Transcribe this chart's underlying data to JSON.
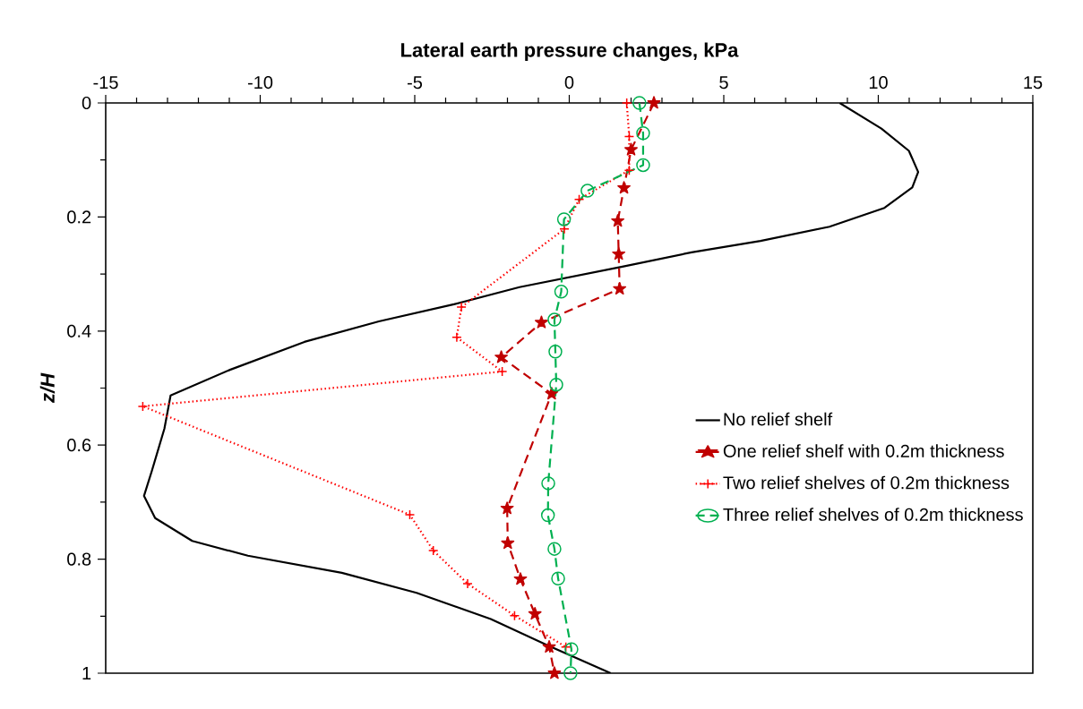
{
  "chart_data": {
    "type": "line",
    "xlabel": "Lateral earth pressure changes, kPa",
    "ylabel": "z/H",
    "xlim": [
      -15,
      15
    ],
    "xticks": [
      -15,
      {
        "value": -14,
        "label": null
      },
      {
        "value": -13,
        "label": null
      },
      {
        "value": -12,
        "label": null
      },
      {
        "value": -11,
        "label": null
      },
      -10,
      {
        "value": -9,
        "label": null
      },
      {
        "value": -8,
        "label": null
      },
      {
        "value": -7,
        "label": null
      },
      {
        "value": -6,
        "label": null
      },
      -5,
      {
        "value": -4,
        "label": null
      },
      {
        "value": -3,
        "label": null
      },
      {
        "value": -2,
        "label": null
      },
      {
        "value": -1,
        "label": null
      },
      0,
      {
        "value": 1,
        "label": null
      },
      {
        "value": 2,
        "label": null
      },
      {
        "value": 3,
        "label": null
      },
      {
        "value": 4,
        "label": null
      },
      5,
      {
        "value": 6,
        "label": null
      },
      {
        "value": 7,
        "label": null
      },
      {
        "value": 8,
        "label": null
      },
      {
        "value": 9,
        "label": null
      },
      10,
      {
        "value": 11,
        "label": null
      },
      {
        "value": 12,
        "label": null
      },
      {
        "value": 13,
        "label": null
      },
      {
        "value": 14,
        "label": null
      },
      15
    ],
    "ylim": [
      1,
      0
    ],
    "yticks": [
      0,
      {
        "value": 0.1,
        "label": null
      },
      0.2,
      {
        "value": 0.3,
        "label": null
      },
      0.4,
      {
        "value": 0.5,
        "label": null
      },
      0.6,
      {
        "value": 0.7,
        "label": null
      },
      0.8,
      {
        "value": 0.9,
        "label": null
      },
      1
    ],
    "grid": false,
    "legend": "right",
    "series": [
      {
        "name": "No relief shelf",
        "color": "#000000",
        "marker": "none",
        "line_style": "solid",
        "x": [
          8.75,
          10.1,
          10.99,
          11.29,
          11.1,
          10.2,
          8.42,
          6.19,
          3.96,
          1.72,
          -1.61,
          -3.73,
          -6.16,
          -8.57,
          -10.98,
          -12.9,
          -13.1,
          -13.5,
          -13.76,
          -13.4,
          -12.2,
          -10.4,
          -7.36,
          -4.94,
          -2.54,
          -0.71,
          1.34
        ],
        "values": [
          0,
          0.045,
          0.084,
          0.121,
          0.148,
          0.184,
          0.217,
          0.242,
          0.262,
          0.287,
          0.323,
          0.353,
          0.383,
          0.419,
          0.468,
          0.513,
          0.571,
          0.644,
          0.689,
          0.728,
          0.768,
          0.794,
          0.824,
          0.859,
          0.905,
          0.951,
          1
        ]
      },
      {
        "name": "One relief shelf with 0.2m thickness",
        "color": "#c00000",
        "marker": "star",
        "line_style": "dashed",
        "x": [
          2.74,
          2.0,
          1.77,
          1.57,
          1.6,
          1.63,
          -0.9,
          -2.2,
          -0.57,
          -2.01,
          -1.99,
          -1.58,
          -1.11,
          -0.65,
          -0.48
        ],
        "values": [
          0,
          0.082,
          0.149,
          0.207,
          0.265,
          0.326,
          0.385,
          0.446,
          0.51,
          0.711,
          0.772,
          0.835,
          0.896,
          0.954,
          1
        ]
      },
      {
        "name": "Two relief shelves of 0.2m thickness",
        "color": "#ff0000",
        "marker": "cross",
        "line_style": "dotted",
        "x": [
          1.86,
          1.94,
          1.94,
          0.32,
          -0.16,
          -3.49,
          -3.64,
          -2.17,
          -13.8,
          -5.16,
          -4.4,
          -3.29,
          -1.77,
          -0.11
        ],
        "values": [
          0,
          0.059,
          0.118,
          0.169,
          0.221,
          0.358,
          0.411,
          0.471,
          0.532,
          0.722,
          0.785,
          0.843,
          0.899,
          0.954
        ]
      },
      {
        "name": "Three relief shelves of 0.2m thickness",
        "color": "#00b050",
        "marker": "circle",
        "line_style": "dashed",
        "x": [
          2.27,
          2.39,
          2.39,
          0.59,
          -0.17,
          -0.26,
          -0.48,
          -0.45,
          -0.42,
          -0.68,
          -0.69,
          -0.48,
          -0.36,
          0.07,
          0.04
        ],
        "values": [
          0,
          0.053,
          0.109,
          0.154,
          0.204,
          0.331,
          0.38,
          0.436,
          0.494,
          0.667,
          0.723,
          0.782,
          0.834,
          0.958,
          1
        ]
      }
    ]
  }
}
